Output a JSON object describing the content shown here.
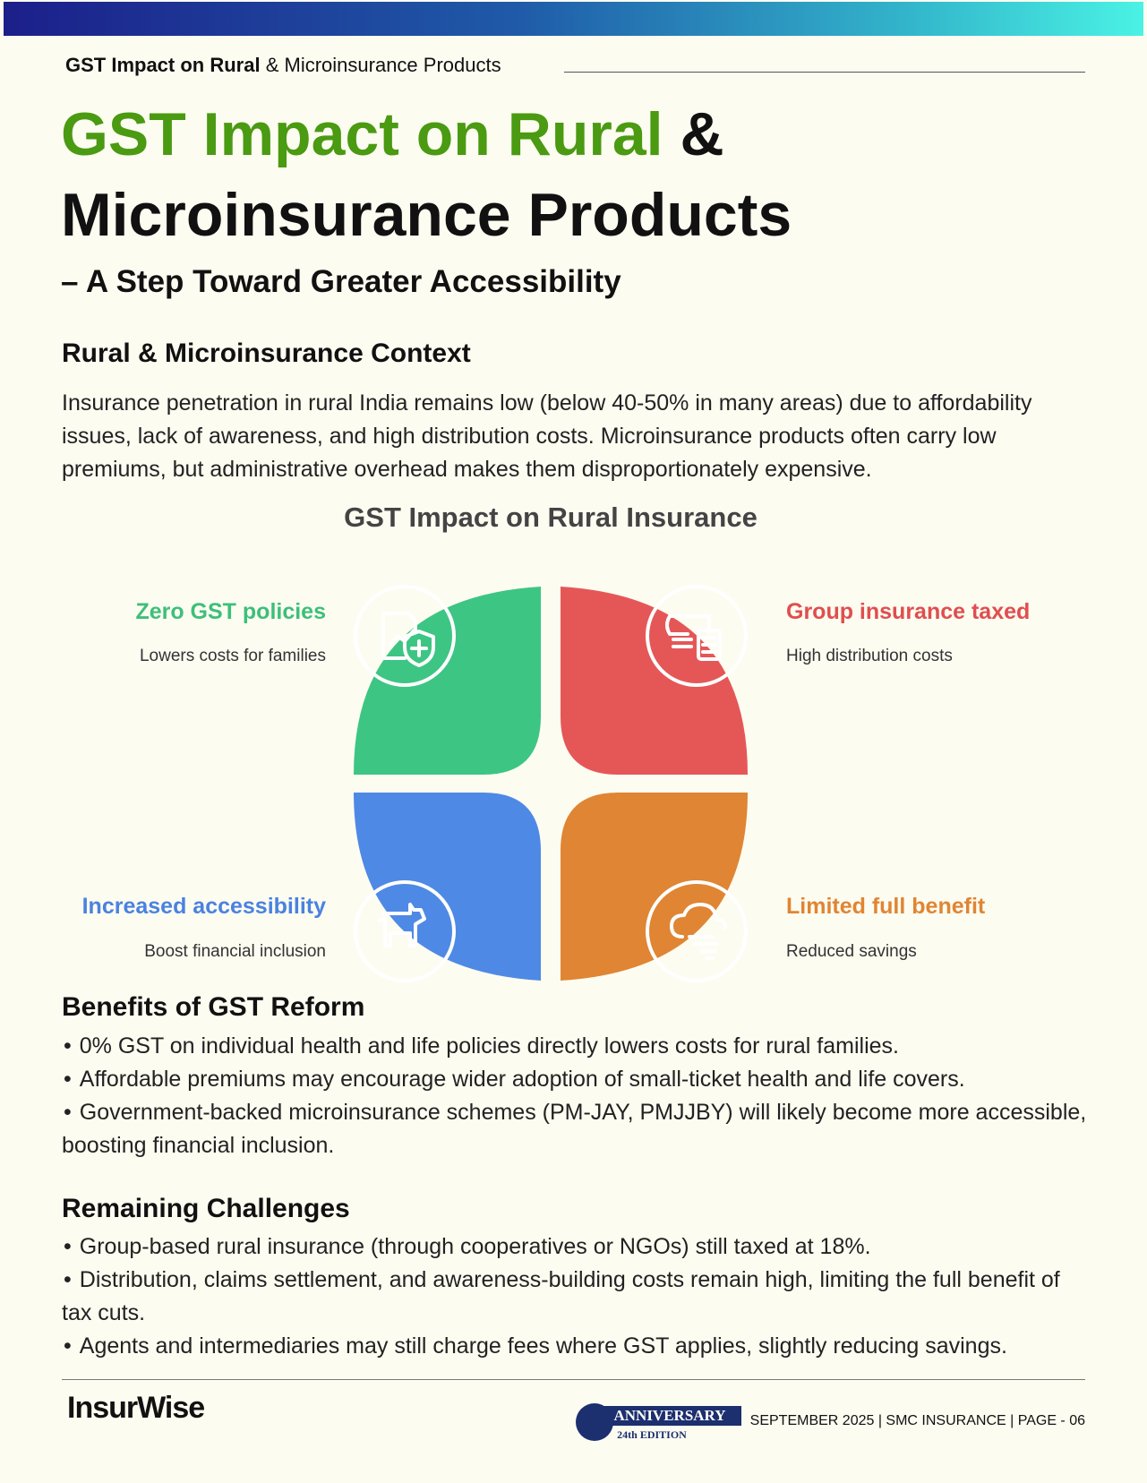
{
  "header": {
    "running_bold": "GST Impact on Rural",
    "running_rest": "& Microinsurance Products"
  },
  "title": {
    "green": "GST Impact on Rural",
    "amp": "&",
    "line2": "Microinsurance Products",
    "subtitle": "– A Step Toward Greater Accessibility"
  },
  "context": {
    "heading": "Rural & Microinsurance Context",
    "text": "Insurance penetration in rural India remains low (below 40-50% in many areas) due to affordability issues, lack of awareness, and high distribution costs. Microinsurance products often carry low premiums, but administrative overhead makes them disproportionately expensive."
  },
  "diagram": {
    "title": "GST Impact on Rural Insurance",
    "quadrants": [
      {
        "label": "Zero GST policies",
        "text": "Lowers costs for families"
      },
      {
        "label": "Group insurance taxed",
        "text": "High distribution costs"
      },
      {
        "label": "Increased accessibility",
        "text": "Boost financial inclusion"
      },
      {
        "label": "Limited full benefit",
        "text": "Reduced savings"
      }
    ]
  },
  "benefits": {
    "heading": "Benefits of GST Reform",
    "items": [
      "0% GST on individual health and life policies directly lowers costs for rural families.",
      "Affordable premiums may encourage wider adoption of small-ticket health and life covers.",
      "Government-backed microinsurance schemes (PM-JAY, PMJJBY) will likely become more accessible, boosting financial inclusion."
    ]
  },
  "challenges": {
    "heading": "Remaining Challenges",
    "items": [
      "Group-based rural insurance (through cooperatives or NGOs) still taxed at 18%.",
      "Distribution, claims settlement, and awareness-building costs remain high, limiting the full benefit of tax cuts.",
      "Agents and intermediaries may still charge fees where GST applies, slightly reducing savings."
    ]
  },
  "footer": {
    "logo": "InsurWise",
    "anniversary": "ANNIVERSARY",
    "edition": "24th EDITION",
    "meta": "SEPTEMBER 2025 |  SMC INSURANCE | PAGE - 06"
  }
}
